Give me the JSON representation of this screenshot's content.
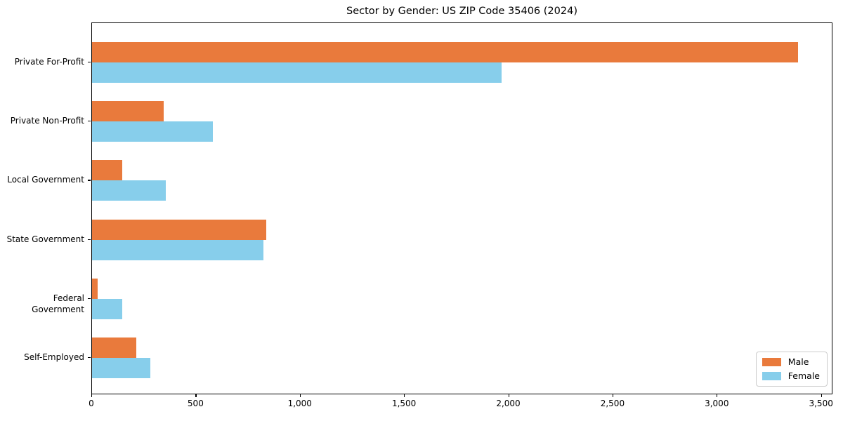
{
  "title": "Sector by Gender: US ZIP Code 35406 (2024)",
  "colors": {
    "male": "#e97a3c",
    "female": "#87ceeb",
    "spine": "#000000",
    "text": "#000000",
    "legend_border": "#cccccc",
    "background": "#ffffff"
  },
  "chart_data": {
    "type": "bar",
    "orientation": "horizontal",
    "title": "Sector by Gender: US ZIP Code 35406 (2024)",
    "xlabel": "",
    "ylabel": "",
    "categories": [
      "Private For-Profit",
      "Private Non-Profit",
      "Local Government",
      "State Government",
      "Federal Government",
      "Self-Employed"
    ],
    "series": [
      {
        "name": "Male",
        "color": "#e97a3c",
        "values": [
          3386,
          344,
          145,
          836,
          27,
          212
        ]
      },
      {
        "name": "Female",
        "color": "#87ceeb",
        "values": [
          1964,
          579,
          354,
          822,
          145,
          280
        ]
      }
    ],
    "xlim": [
      0,
      3555
    ],
    "xticks": [
      0,
      500,
      1000,
      1500,
      2000,
      2500,
      3000,
      3500
    ],
    "xtick_labels": [
      "0",
      "500",
      "1,000",
      "1,500",
      "2,000",
      "2,500",
      "3,000",
      "3,500"
    ],
    "grid": false,
    "legend": {
      "position": "lower right",
      "entries": [
        "Male",
        "Female"
      ]
    }
  }
}
